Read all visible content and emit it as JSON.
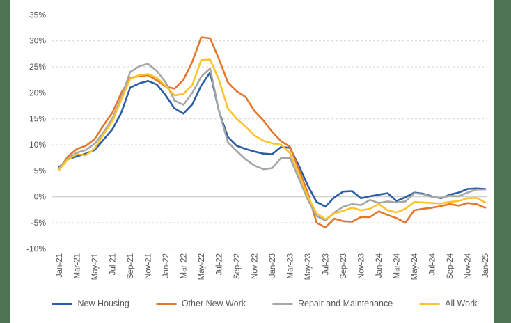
{
  "page": {
    "background": "#ffffff",
    "edge_bar_color": "#4d7355",
    "text_color": "#595959",
    "gridline_color": "#d4d4d4",
    "zero_line_color": "#c4c4c4"
  },
  "chart_data": {
    "type": "line",
    "title": "",
    "xlabel": "",
    "ylabel": "",
    "y_axis": {
      "min": -10,
      "max": 35,
      "step": 5,
      "tick_suffix": "%",
      "ticks": [
        35,
        30,
        25,
        20,
        15,
        10,
        5,
        0,
        -5,
        -10
      ]
    },
    "grid": {
      "show": true,
      "style": "dashed",
      "zero_line": "solid"
    },
    "legend_position": "bottom",
    "x_tick_labels": [
      "Jan-21",
      "Mar-21",
      "May-21",
      "Jul-21",
      "Sep-21",
      "Nov-21",
      "Jan-22",
      "Mar-22",
      "May-22",
      "Jul-22",
      "Sep-22",
      "Nov-22",
      "Jan-23",
      "Mar-23",
      "May-23",
      "Jul-23",
      "Sep-23",
      "Nov-23",
      "Jan-24",
      "Mar-24",
      "May-24",
      "Jul-24",
      "Sep-24",
      "Nov-24",
      "Jan-25"
    ],
    "categories": [
      "Jan-21",
      "Feb-21",
      "Mar-21",
      "Apr-21",
      "May-21",
      "Jun-21",
      "Jul-21",
      "Aug-21",
      "Sep-21",
      "Oct-21",
      "Nov-21",
      "Dec-21",
      "Jan-22",
      "Feb-22",
      "Mar-22",
      "Apr-22",
      "May-22",
      "Jun-22",
      "Jul-22",
      "Aug-22",
      "Sep-22",
      "Oct-22",
      "Nov-22",
      "Dec-22",
      "Jan-23",
      "Feb-23",
      "Mar-23",
      "Apr-23",
      "May-23",
      "Jun-23",
      "Jul-23",
      "Aug-23",
      "Sep-23",
      "Oct-23",
      "Nov-23",
      "Dec-23",
      "Jan-24",
      "Feb-24",
      "Mar-24",
      "Apr-24",
      "May-24",
      "Jun-24",
      "Jul-24",
      "Aug-24",
      "Sep-24",
      "Oct-24",
      "Nov-24",
      "Dec-24",
      "Jan-25"
    ],
    "series": [
      {
        "name": "New Housing",
        "color": "#2b5da4",
        "values": [
          5.7,
          7.2,
          7.8,
          8.3,
          9.0,
          11.0,
          13.0,
          16.2,
          21.0,
          21.8,
          22.3,
          21.6,
          19.5,
          17.0,
          16.0,
          17.8,
          21.4,
          23.9,
          16.5,
          11.5,
          9.8,
          9.2,
          8.7,
          8.3,
          8.2,
          9.6,
          9.4,
          6.0,
          2.2,
          -1.0,
          -1.9,
          -0.1,
          1.0,
          1.1,
          -0.3,
          0.1,
          0.4,
          0.7,
          -0.8,
          -0.1,
          0.8,
          0.6,
          0.1,
          -0.3,
          0.4,
          0.8,
          1.5,
          1.6,
          1.5
        ]
      },
      {
        "name": "Other New Work",
        "color": "#e5762b",
        "values": [
          5.4,
          7.8,
          9.2,
          9.8,
          11.1,
          13.8,
          16.2,
          20.0,
          22.9,
          23.2,
          23.4,
          22.4,
          21.2,
          20.8,
          22.5,
          26.0,
          30.7,
          30.5,
          26.5,
          22.0,
          20.3,
          19.2,
          16.5,
          14.7,
          12.5,
          10.7,
          9.6,
          5.3,
          0.8,
          -5.0,
          -5.9,
          -4.2,
          -4.7,
          -4.8,
          -3.9,
          -3.9,
          -2.8,
          -3.5,
          -4.1,
          -5.0,
          -2.6,
          -2.3,
          -2.1,
          -1.8,
          -1.4,
          -1.7,
          -1.2,
          -1.4,
          -2.1
        ]
      },
      {
        "name": "Repair and Maintenance",
        "color": "#a6a6a6",
        "values": [
          5.5,
          7.4,
          8.5,
          9.0,
          10.2,
          12.4,
          15.1,
          19.1,
          24.0,
          25.1,
          25.6,
          24.2,
          22.0,
          18.5,
          17.7,
          20.0,
          23.1,
          24.7,
          16.5,
          10.5,
          8.8,
          7.2,
          6.0,
          5.3,
          5.5,
          7.5,
          7.5,
          3.5,
          -0.5,
          -3.7,
          -4.6,
          -3.0,
          -1.9,
          -1.4,
          -1.6,
          -0.6,
          -1.2,
          -0.9,
          -1.1,
          -0.9,
          0.7,
          0.5,
          0.0,
          -0.2,
          0.2,
          0.1,
          0.8,
          1.4,
          1.4
        ]
      },
      {
        "name": "All Work",
        "color": "#fdc32f",
        "values": [
          5.2,
          7.2,
          8.2,
          8.0,
          9.3,
          12.0,
          14.6,
          18.7,
          22.7,
          23.4,
          23.6,
          22.9,
          21.3,
          19.5,
          19.8,
          21.5,
          26.3,
          26.4,
          22.5,
          17.0,
          15.0,
          13.5,
          11.8,
          10.8,
          10.3,
          10.0,
          8.4,
          4.4,
          0.1,
          -3.2,
          -4.3,
          -3.2,
          -2.7,
          -2.1,
          -2.6,
          -2.3,
          -1.4,
          -2.6,
          -3.0,
          -2.3,
          -1.0,
          -1.1,
          -1.2,
          -1.3,
          -1.0,
          -0.8,
          -0.3,
          -0.2,
          -1.1
        ]
      }
    ]
  }
}
